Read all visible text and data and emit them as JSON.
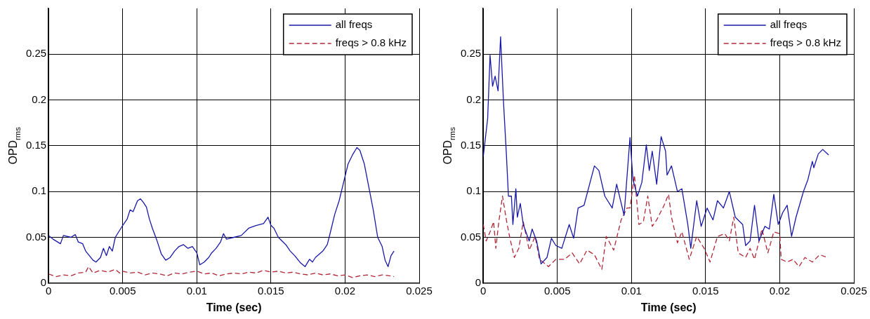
{
  "chart_data": [
    {
      "type": "line",
      "xlabel": "Time (sec)",
      "ylabel": "OPD$_{rms}$",
      "xlim": [
        0,
        0.025
      ],
      "xticks": [
        0,
        0.005,
        0.01,
        0.015,
        0.02,
        0.025
      ],
      "ylim": [
        0,
        0.3
      ],
      "yticks": [
        0,
        0.05,
        0.1,
        0.15,
        0.2,
        0.25
      ],
      "grid": true,
      "legend": "top right",
      "series": [
        {
          "name": "all freqs",
          "color": "#1818a8",
          "line_style": "solid",
          "x": [
            0,
            0.0003,
            0.0008,
            0.001,
            0.0015,
            0.0018,
            0.002,
            0.0023,
            0.0025,
            0.003,
            0.0032,
            0.0035,
            0.0037,
            0.0039,
            0.0041,
            0.0043,
            0.0045,
            0.005,
            0.0053,
            0.0055,
            0.0057,
            0.006,
            0.0062,
            0.0064,
            0.0066,
            0.0068,
            0.007,
            0.0073,
            0.0076,
            0.0079,
            0.0082,
            0.0085,
            0.0088,
            0.0091,
            0.0094,
            0.0097,
            0.01,
            0.0102,
            0.0105,
            0.0108,
            0.011,
            0.0113,
            0.0116,
            0.0118,
            0.012,
            0.0125,
            0.013,
            0.0135,
            0.014,
            0.0145,
            0.0148,
            0.015,
            0.0152,
            0.0155,
            0.016,
            0.0163,
            0.0166,
            0.017,
            0.0173,
            0.0176,
            0.0178,
            0.018,
            0.0185,
            0.0188,
            0.019,
            0.0193,
            0.0196,
            0.0199,
            0.0202,
            0.0205,
            0.0208,
            0.021,
            0.0213,
            0.0216,
            0.0219,
            0.0222,
            0.0225,
            0.0227,
            0.0229,
            0.0231,
            0.0233
          ],
          "values": [
            0.052,
            0.048,
            0.043,
            0.052,
            0.05,
            0.053,
            0.045,
            0.043,
            0.035,
            0.025,
            0.023,
            0.028,
            0.038,
            0.03,
            0.04,
            0.035,
            0.05,
            0.063,
            0.07,
            0.08,
            0.078,
            0.09,
            0.092,
            0.088,
            0.083,
            0.07,
            0.06,
            0.047,
            0.032,
            0.025,
            0.028,
            0.035,
            0.04,
            0.042,
            0.038,
            0.04,
            0.033,
            0.02,
            0.023,
            0.028,
            0.033,
            0.038,
            0.045,
            0.054,
            0.048,
            0.05,
            0.052,
            0.06,
            0.063,
            0.065,
            0.072,
            0.063,
            0.06,
            0.05,
            0.042,
            0.035,
            0.03,
            0.022,
            0.018,
            0.026,
            0.023,
            0.028,
            0.035,
            0.042,
            0.055,
            0.075,
            0.09,
            0.11,
            0.13,
            0.14,
            0.148,
            0.145,
            0.13,
            0.105,
            0.08,
            0.05,
            0.04,
            0.025,
            0.018,
            0.03,
            0.035
          ]
        },
        {
          "name": "freqs > 0.8 kHz",
          "color": "#b02838",
          "line_style": "dashed",
          "x": [
            0,
            0.0005,
            0.001,
            0.0015,
            0.002,
            0.0025,
            0.0027,
            0.003,
            0.0035,
            0.004,
            0.0045,
            0.0048,
            0.005,
            0.0055,
            0.006,
            0.0065,
            0.007,
            0.0075,
            0.008,
            0.0085,
            0.009,
            0.0095,
            0.01,
            0.0105,
            0.011,
            0.0115,
            0.012,
            0.0125,
            0.013,
            0.0135,
            0.014,
            0.0145,
            0.015,
            0.0155,
            0.016,
            0.0165,
            0.017,
            0.0175,
            0.018,
            0.0185,
            0.019,
            0.0195,
            0.02,
            0.0205,
            0.021,
            0.0215,
            0.022,
            0.0225,
            0.023,
            0.0233
          ],
          "values": [
            0.01,
            0.007,
            0.009,
            0.008,
            0.011,
            0.012,
            0.018,
            0.011,
            0.014,
            0.012,
            0.015,
            0.011,
            0.013,
            0.011,
            0.012,
            0.009,
            0.011,
            0.01,
            0.008,
            0.011,
            0.01,
            0.012,
            0.013,
            0.01,
            0.011,
            0.008,
            0.01,
            0.011,
            0.01,
            0.012,
            0.011,
            0.014,
            0.012,
            0.013,
            0.011,
            0.012,
            0.01,
            0.009,
            0.011,
            0.009,
            0.01,
            0.008,
            0.009,
            0.006,
            0.008,
            0.009,
            0.007,
            0.009,
            0.008,
            0.007
          ]
        }
      ]
    },
    {
      "type": "line",
      "xlabel": "Time (sec)",
      "ylabel": "OPD$_{rms}$",
      "xlim": [
        0,
        0.025
      ],
      "xticks": [
        0,
        0.005,
        0.01,
        0.015,
        0.02,
        0.025
      ],
      "ylim": [
        0,
        0.3
      ],
      "yticks": [
        0,
        0.05,
        0.1,
        0.15,
        0.2,
        0.25
      ],
      "grid": true,
      "legend": "top right",
      "series": [
        {
          "name": "all freqs",
          "color": "#1818a8",
          "line_style": "solid",
          "x": [
            0,
            0.0003,
            0.00046,
            0.00063,
            0.0008,
            0.001,
            0.00117,
            0.00136,
            0.00156,
            0.0017,
            0.0019,
            0.002,
            0.0022,
            0.0023,
            0.0025,
            0.0027,
            0.0031,
            0.0033,
            0.0036,
            0.0039,
            0.0043,
            0.0046,
            0.0049,
            0.0053,
            0.0058,
            0.0061,
            0.0064,
            0.0068,
            0.0075,
            0.0078,
            0.0082,
            0.0087,
            0.009,
            0.0095,
            0.0099,
            0.0101,
            0.0104,
            0.0107,
            0.011,
            0.0112,
            0.0114,
            0.0117,
            0.012,
            0.0123,
            0.0124,
            0.0127,
            0.0131,
            0.0134,
            0.0138,
            0.014,
            0.0144,
            0.0147,
            0.0151,
            0.0155,
            0.0158,
            0.0162,
            0.0166,
            0.017,
            0.0175,
            0.0177,
            0.018,
            0.0183,
            0.0186,
            0.019,
            0.0193,
            0.0196,
            0.0199,
            0.0202,
            0.0205,
            0.0208,
            0.0211,
            0.0216,
            0.0219,
            0.0222,
            0.0223,
            0.0226,
            0.0229,
            0.0233
          ],
          "values": [
            0.138,
            0.18,
            0.249,
            0.215,
            0.226,
            0.21,
            0.269,
            0.2,
            0.141,
            0.095,
            0.095,
            0.064,
            0.103,
            0.072,
            0.087,
            0.064,
            0.046,
            0.059,
            0.046,
            0.021,
            0.028,
            0.049,
            0.041,
            0.038,
            0.064,
            0.049,
            0.082,
            0.085,
            0.128,
            0.123,
            0.095,
            0.082,
            0.108,
            0.074,
            0.159,
            0.113,
            0.095,
            0.11,
            0.151,
            0.123,
            0.144,
            0.108,
            0.16,
            0.144,
            0.118,
            0.128,
            0.1,
            0.103,
            0.064,
            0.038,
            0.09,
            0.062,
            0.082,
            0.069,
            0.09,
            0.082,
            0.1,
            0.072,
            0.064,
            0.041,
            0.046,
            0.085,
            0.046,
            0.062,
            0.059,
            0.097,
            0.064,
            0.077,
            0.085,
            0.051,
            0.072,
            0.1,
            0.113,
            0.133,
            0.126,
            0.141,
            0.146,
            0.14
          ]
        },
        {
          "name": "freqs > 0.8 kHz",
          "color": "#b02838",
          "line_style": "dashed",
          "x": [
            0,
            0.0002,
            0.00046,
            0.0007,
            0.00085,
            0.00105,
            0.0013,
            0.00156,
            0.0018,
            0.0021,
            0.0024,
            0.0027,
            0.0031,
            0.0035,
            0.0038,
            0.0044,
            0.0049,
            0.0055,
            0.006,
            0.0065,
            0.007,
            0.0075,
            0.008,
            0.0083,
            0.0088,
            0.0093,
            0.0097,
            0.0099,
            0.0102,
            0.0105,
            0.0108,
            0.0111,
            0.0114,
            0.0117,
            0.0122,
            0.0125,
            0.0127,
            0.0131,
            0.0134,
            0.0139,
            0.0144,
            0.0149,
            0.0153,
            0.0158,
            0.0163,
            0.0166,
            0.0169,
            0.0172,
            0.0177,
            0.018,
            0.0183,
            0.0188,
            0.0192,
            0.0196,
            0.02,
            0.0201,
            0.0205,
            0.0209,
            0.0213,
            0.0217,
            0.0222,
            0.0227,
            0.0232
          ],
          "values": [
            0.064,
            0.046,
            0.056,
            0.067,
            0.038,
            0.067,
            0.095,
            0.069,
            0.049,
            0.028,
            0.038,
            0.067,
            0.036,
            0.051,
            0.026,
            0.018,
            0.026,
            0.026,
            0.033,
            0.021,
            0.036,
            0.031,
            0.015,
            0.051,
            0.036,
            0.069,
            0.082,
            0.082,
            0.118,
            0.064,
            0.067,
            0.095,
            0.062,
            0.069,
            0.085,
            0.097,
            0.072,
            0.044,
            0.056,
            0.026,
            0.051,
            0.038,
            0.023,
            0.051,
            0.054,
            0.046,
            0.072,
            0.033,
            0.028,
            0.038,
            0.026,
            0.059,
            0.033,
            0.056,
            0.054,
            0.026,
            0.023,
            0.026,
            0.018,
            0.028,
            0.023,
            0.031,
            0.028
          ]
        }
      ]
    }
  ]
}
